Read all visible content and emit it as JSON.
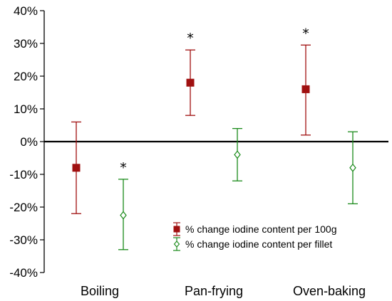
{
  "chart_data": {
    "type": "scatter",
    "title": "",
    "xlabel": "",
    "ylabel": "",
    "categories": [
      "Boiling",
      "Pan-frying",
      "Oven-baking"
    ],
    "ylim": [
      -40,
      40
    ],
    "yticks": [
      -40,
      -30,
      -20,
      -10,
      0,
      10,
      20,
      30,
      40
    ],
    "ytick_labels": [
      "-40%",
      "-30%",
      "-20%",
      "-10%",
      "0%",
      "10%",
      "20%",
      "30%",
      "40%"
    ],
    "grid": false,
    "legend_position": "bottom-right",
    "series": [
      {
        "name": "% change iodine content per 100g",
        "color": "#a01010",
        "marker": "filled-square",
        "values": [
          -8,
          18,
          16
        ],
        "lower": [
          -22,
          8,
          2
        ],
        "upper": [
          6,
          28,
          29.5
        ],
        "significant": [
          false,
          true,
          true
        ]
      },
      {
        "name": "% change iodine content per fillet",
        "color": "#1a8a1a",
        "marker": "open-diamond",
        "values": [
          -22.5,
          -4,
          -8
        ],
        "lower": [
          -33,
          -12,
          -19
        ],
        "upper": [
          -11.5,
          4,
          3
        ],
        "significant": [
          true,
          false,
          false
        ]
      }
    ],
    "annotation_symbol": "*"
  }
}
